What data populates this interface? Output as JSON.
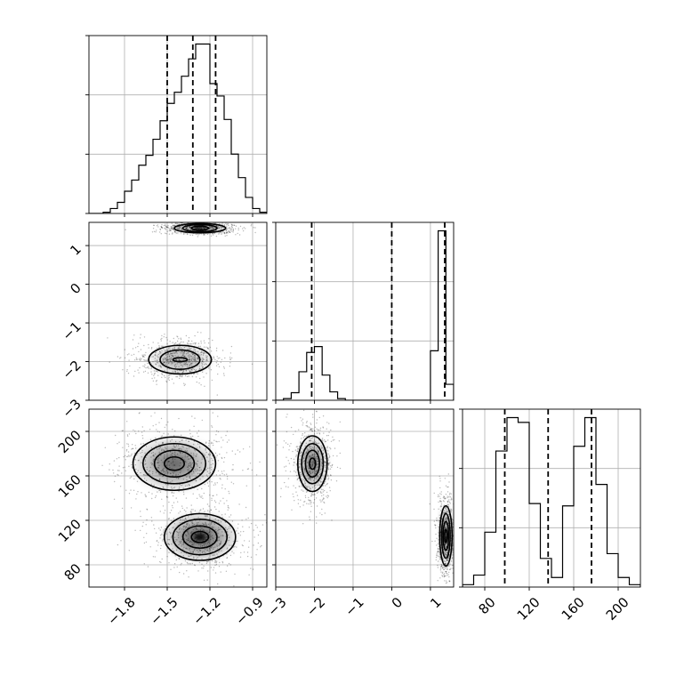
{
  "chart_data": {
    "type": "corner",
    "parameters": [
      {
        "name": "",
        "range": [
          -2.05,
          -0.8
        ],
        "ticks": [
          -1.8,
          -1.5,
          -1.2,
          -0.9
        ],
        "tick_labels": [
          "−1.8",
          "−1.5",
          "−1.2",
          "−0.9"
        ],
        "quantiles": [
          -1.5,
          -1.32,
          -1.16
        ],
        "histogram": {
          "edges": [
            -2.05,
            -2.0,
            -1.95,
            -1.9,
            -1.85,
            -1.8,
            -1.75,
            -1.7,
            -1.65,
            -1.6,
            -1.55,
            -1.5,
            -1.45,
            -1.4,
            -1.35,
            -1.3,
            -1.25,
            -1.2,
            -1.15,
            -1.1,
            -1.05,
            -1.0,
            -0.95,
            -0.9,
            -0.85,
            -0.8
          ],
          "counts": [
            0,
            0,
            1,
            4,
            9,
            18,
            27,
            39,
            47,
            60,
            75,
            89,
            98,
            111,
            125,
            137,
            137,
            105,
            95,
            76,
            48,
            29,
            13,
            4,
            1
          ]
        }
      },
      {
        "name": "",
        "range": [
          -3,
          1.6
        ],
        "ticks": [
          -3,
          -2,
          -1,
          0,
          1
        ],
        "tick_labels": [
          "−3",
          "−2",
          "−1",
          "0",
          "1"
        ],
        "quantiles": [
          -2.07,
          0.0,
          1.37
        ],
        "histogram": {
          "edges": [
            -3.0,
            -2.8,
            -2.6,
            -2.4,
            -2.2,
            -2.0,
            -1.8,
            -1.6,
            -1.4,
            -1.2,
            -1.0,
            -0.8,
            -0.6,
            -0.4,
            -0.2,
            0.0,
            0.2,
            0.4,
            0.6,
            0.8,
            1.0,
            1.2,
            1.4,
            1.6
          ],
          "counts": [
            0,
            2,
            9,
            34,
            57,
            64,
            30,
            10,
            2,
            0,
            0,
            0,
            0,
            0,
            0,
            0,
            0,
            0,
            0,
            0,
            59,
            202,
            19
          ]
        }
      },
      {
        "name": "",
        "range": [
          60,
          220
        ],
        "ticks": [
          80,
          120,
          160,
          200
        ],
        "tick_labels": [
          "80",
          "120",
          "160",
          "200"
        ],
        "quantiles": [
          98,
          137,
          176
        ],
        "histogram": {
          "edges": [
            60,
            70,
            80,
            90,
            100,
            110,
            120,
            130,
            140,
            150,
            160,
            170,
            180,
            190,
            200,
            210,
            220
          ],
          "counts": [
            1,
            5,
            23,
            57,
            71,
            69,
            35,
            12,
            4,
            34,
            59,
            71,
            43,
            14,
            4,
            1
          ]
        }
      }
    ],
    "panels_2d": [
      {
        "x_param": 0,
        "y_param": 1,
        "modes": [
          {
            "center": [
              -1.27,
              1.45
            ],
            "levels_sigma": [
              [
                0.06,
                0.05
              ],
              [
                0.12,
                0.09
              ],
              [
                0.18,
                0.12
              ]
            ],
            "core_density": "high"
          },
          {
            "center": [
              -1.41,
              -1.95
            ],
            "levels_sigma": [
              [
                0.05,
                0.05
              ],
              [
                0.14,
                0.25
              ],
              [
                0.22,
                0.37
              ]
            ],
            "core_density": "medium"
          }
        ]
      },
      {
        "x_param": 0,
        "y_param": 2,
        "modes": [
          {
            "center": [
              -1.45,
              171
            ],
            "levels_sigma": [
              [
                0.07,
                6
              ],
              [
                0.14,
                12
              ],
              [
                0.22,
                18
              ],
              [
                0.29,
                24
              ]
            ],
            "core_density": "medium"
          },
          {
            "center": [
              -1.27,
              105
            ],
            "levels_sigma": [
              [
                0.06,
                5
              ],
              [
                0.12,
                10
              ],
              [
                0.19,
                16
              ],
              [
                0.25,
                21
              ]
            ],
            "core_density": "high"
          }
        ]
      },
      {
        "x_param": 1,
        "y_param": 2,
        "modes": [
          {
            "center": [
              -2.05,
              171
            ],
            "levels_sigma": [
              [
                0.08,
                5
              ],
              [
                0.18,
                12
              ],
              [
                0.28,
                18
              ],
              [
                0.38,
                25
              ]
            ],
            "core_density": "medium"
          },
          {
            "center": [
              1.4,
              106
            ],
            "levels_sigma": [
              [
                0.03,
                6
              ],
              [
                0.07,
                13
              ],
              [
                0.11,
                20
              ],
              [
                0.16,
                27
              ]
            ],
            "core_density": "high"
          }
        ]
      }
    ],
    "grid": true,
    "title": "",
    "xlabel": "",
    "ylabel": ""
  }
}
